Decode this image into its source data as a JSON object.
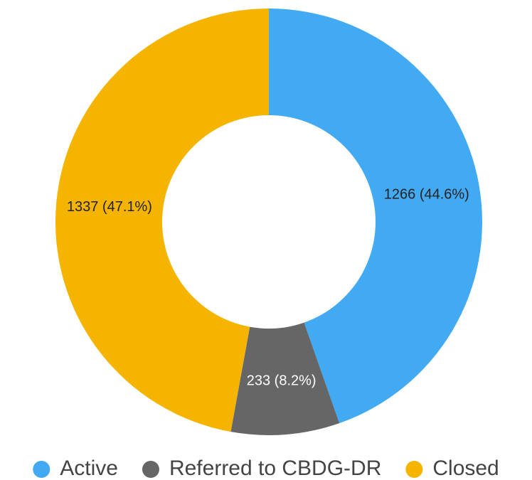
{
  "chart_data": {
    "type": "donut",
    "categories": [
      "Active",
      "Referred to CBDG-DR",
      "Closed"
    ],
    "values": [
      1266,
      233,
      1337
    ],
    "value_labels": [
      "1266 (44.6%)",
      "233 (8.2%)",
      "1337 (47.1%)"
    ],
    "colors": [
      "#42a9f3",
      "#666666",
      "#f4b400"
    ],
    "legend": "bottom"
  }
}
